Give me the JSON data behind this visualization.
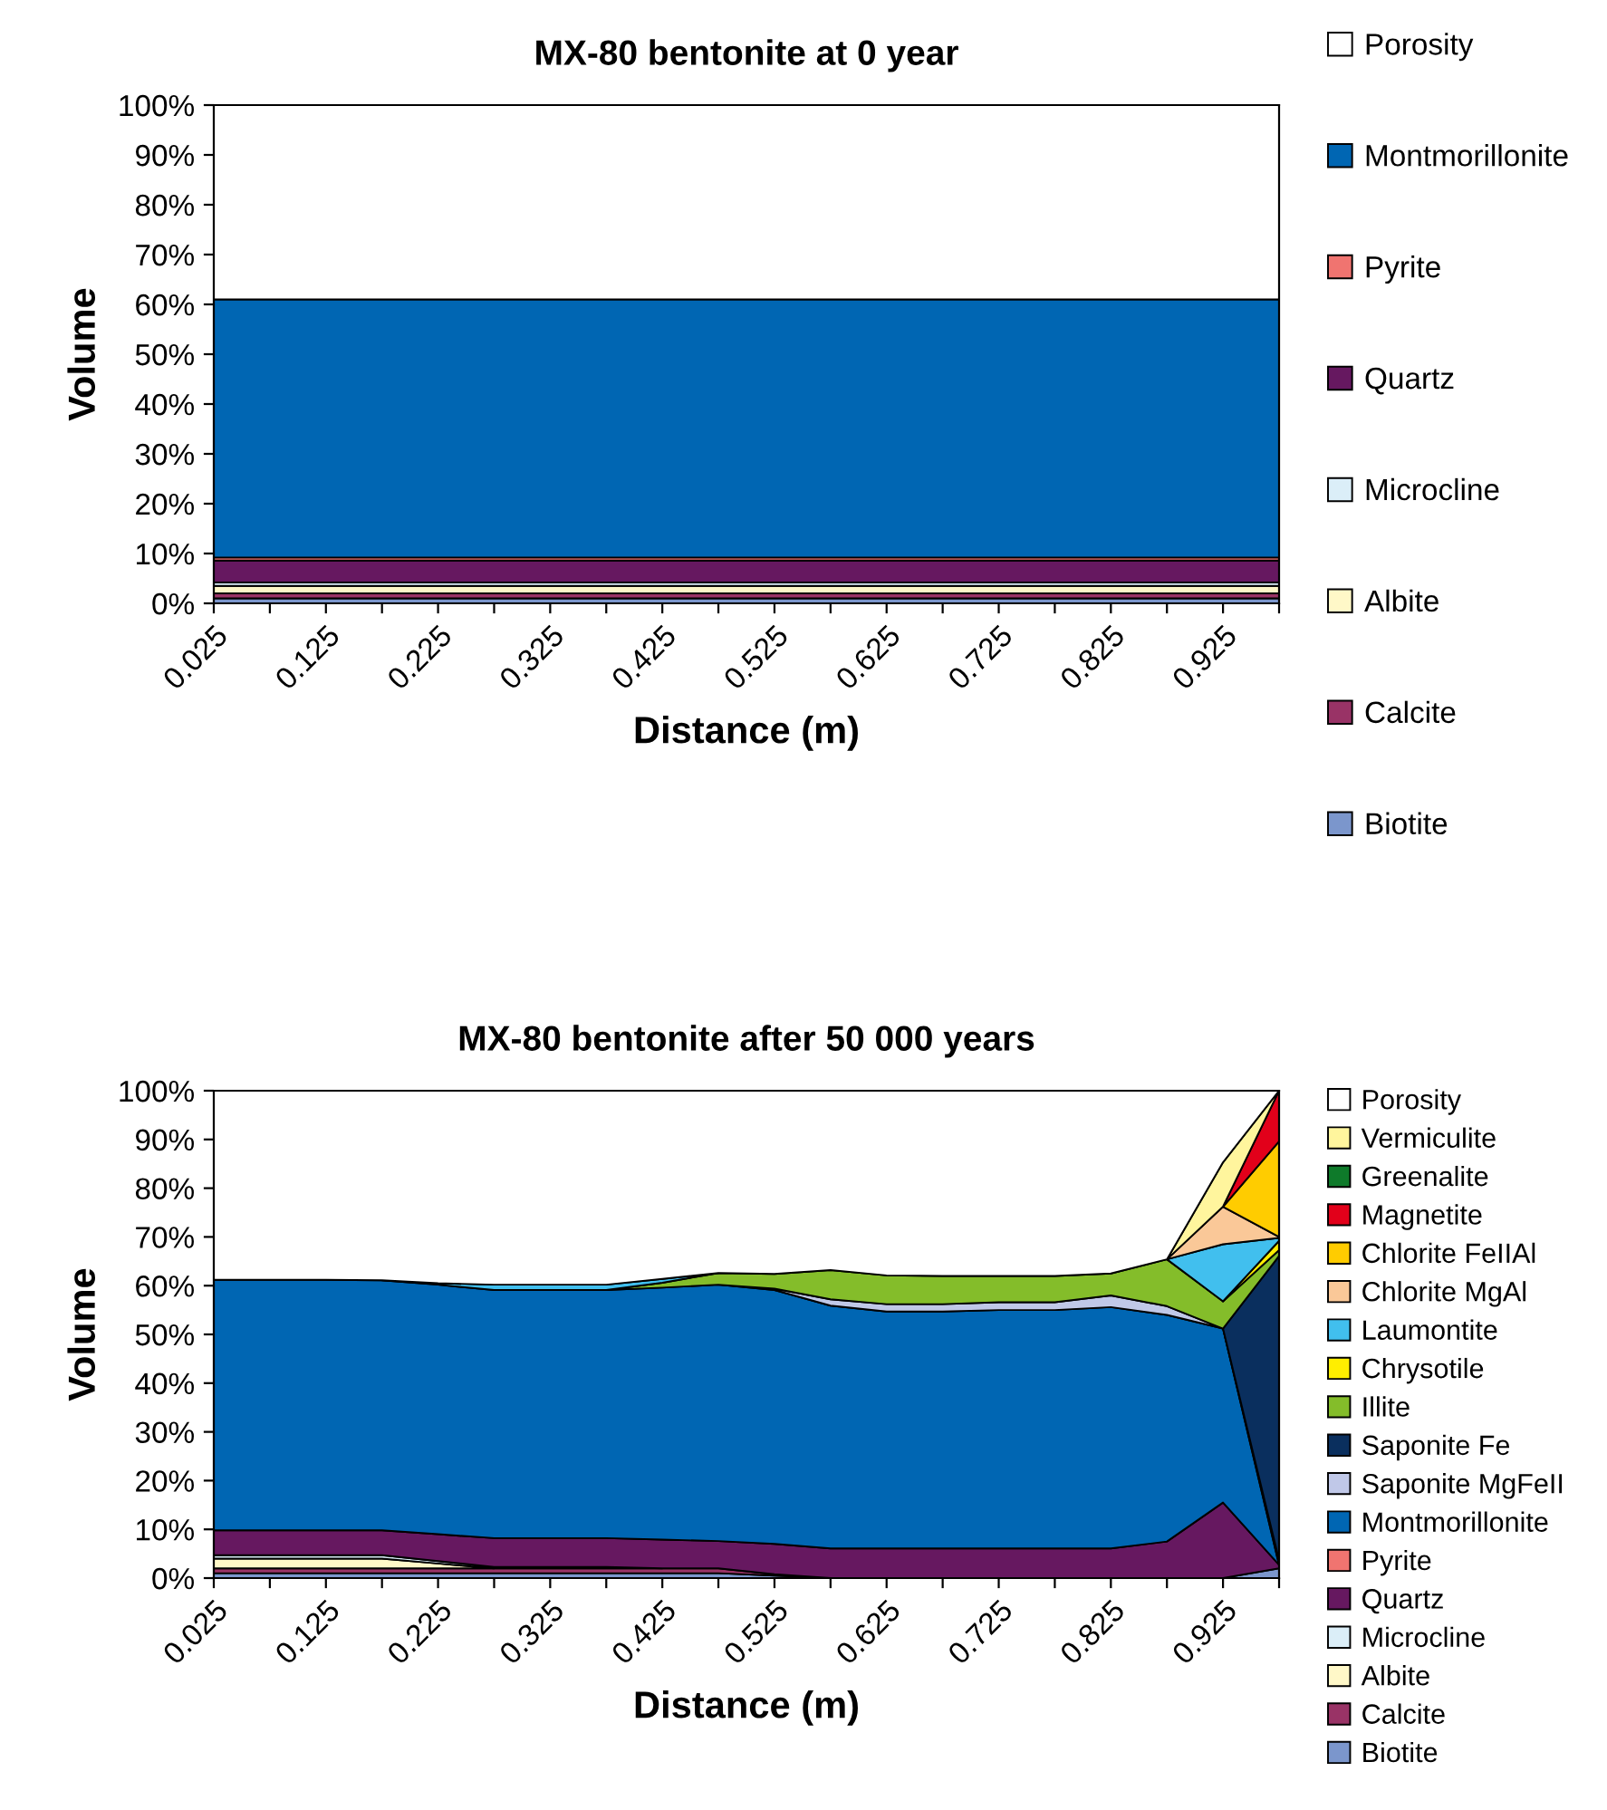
{
  "chart_data": [
    {
      "type": "area",
      "stacked": true,
      "title": "MX-80 bentonite at 0 year",
      "xlabel": "Distance (m)",
      "ylabel": "Volume",
      "categories": [
        "0.025",
        null,
        "0.125",
        null,
        "0.225",
        null,
        "0.325",
        null,
        "0.425",
        null,
        "0.525",
        null,
        "0.625",
        null,
        "0.725",
        null,
        "0.825",
        null,
        "0.925",
        null
      ],
      "ylim": [
        0,
        100
      ],
      "yticks": [
        {
          "value": 0,
          "label": "0%"
        },
        {
          "value": 10,
          "label": "10%"
        },
        {
          "value": 20,
          "label": "20%"
        },
        {
          "value": 30,
          "label": "30%"
        },
        {
          "value": 40,
          "label": "40%"
        },
        {
          "value": 50,
          "label": "50%"
        },
        {
          "value": 60,
          "label": "60%"
        },
        {
          "value": 70,
          "label": "70%"
        },
        {
          "value": 80,
          "label": "80%"
        },
        {
          "value": 90,
          "label": "90%"
        },
        {
          "value": 100,
          "label": "100%"
        }
      ],
      "grid": false,
      "legend": "right",
      "series": [
        {
          "name": "Biotite",
          "color": "#7b96cc",
          "values": [
            1.0,
            1.0,
            1.0,
            1.0,
            1.0,
            1.0,
            1.0,
            1.0,
            1.0,
            1.0,
            1.0,
            1.0,
            1.0,
            1.0,
            1.0,
            1.0,
            1.0,
            1.0,
            1.0,
            1.0
          ]
        },
        {
          "name": "Calcite",
          "color": "#993366",
          "values": [
            1.0,
            1.0,
            1.0,
            1.0,
            1.0,
            1.0,
            1.0,
            1.0,
            1.0,
            1.0,
            1.0,
            1.0,
            1.0,
            1.0,
            1.0,
            1.0,
            1.0,
            1.0,
            1.0,
            1.0
          ]
        },
        {
          "name": "Albite",
          "color": "#fff8c8",
          "values": [
            1.5,
            1.5,
            1.5,
            1.5,
            1.5,
            1.5,
            1.5,
            1.5,
            1.5,
            1.5,
            1.5,
            1.5,
            1.5,
            1.5,
            1.5,
            1.5,
            1.5,
            1.5,
            1.5,
            1.5
          ]
        },
        {
          "name": "Microcline",
          "color": "#dbeef8",
          "values": [
            0.7,
            0.7,
            0.7,
            0.7,
            0.7,
            0.7,
            0.7,
            0.7,
            0.7,
            0.7,
            0.7,
            0.7,
            0.7,
            0.7,
            0.7,
            0.7,
            0.7,
            0.7,
            0.7,
            0.7
          ]
        },
        {
          "name": "Quartz",
          "color": "#661860",
          "values": [
            4.4,
            4.4,
            4.4,
            4.4,
            4.4,
            4.4,
            4.4,
            4.4,
            4.4,
            4.4,
            4.4,
            4.4,
            4.4,
            4.4,
            4.4,
            4.4,
            4.4,
            4.4,
            4.4,
            4.4
          ]
        },
        {
          "name": "Pyrite",
          "color": "#f07470",
          "values": [
            0.6,
            0.6,
            0.6,
            0.6,
            0.6,
            0.6,
            0.6,
            0.6,
            0.6,
            0.6,
            0.6,
            0.6,
            0.6,
            0.6,
            0.6,
            0.6,
            0.6,
            0.6,
            0.6,
            0.6
          ]
        },
        {
          "name": "Montmorillonite",
          "color": "#0066b3",
          "values": [
            51.8,
            51.8,
            51.8,
            51.8,
            51.8,
            51.8,
            51.8,
            51.8,
            51.8,
            51.8,
            51.8,
            51.8,
            51.8,
            51.8,
            51.8,
            51.8,
            51.8,
            51.8,
            51.8,
            51.8
          ]
        },
        {
          "name": "Porosity",
          "color": "#ffffff",
          "values": [
            39,
            39,
            39,
            39,
            39,
            39,
            39,
            39,
            39,
            39,
            39,
            39,
            39,
            39,
            39,
            39,
            39,
            39,
            39,
            39
          ]
        }
      ]
    },
    {
      "type": "area",
      "stacked": true,
      "title": "MX-80 bentonite after 50 000 years",
      "xlabel": "Distance (m)",
      "ylabel": "Volume",
      "categories": [
        "0.025",
        null,
        "0.125",
        null,
        "0.225",
        null,
        "0.325",
        null,
        "0.425",
        null,
        "0.525",
        null,
        "0.625",
        null,
        "0.725",
        null,
        "0.825",
        null,
        "0.925",
        null
      ],
      "ylim": [
        0,
        100
      ],
      "yticks": [
        {
          "value": 0,
          "label": "0%"
        },
        {
          "value": 10,
          "label": "10%"
        },
        {
          "value": 20,
          "label": "20%"
        },
        {
          "value": 30,
          "label": "30%"
        },
        {
          "value": 40,
          "label": "40%"
        },
        {
          "value": 50,
          "label": "50%"
        },
        {
          "value": 60,
          "label": "60%"
        },
        {
          "value": 70,
          "label": "70%"
        },
        {
          "value": 80,
          "label": "80%"
        },
        {
          "value": 90,
          "label": "90%"
        },
        {
          "value": 100,
          "label": "100%"
        }
      ],
      "grid": false,
      "legend": "right",
      "series": [
        {
          "name": "Biotite",
          "color": "#7b96cc",
          "values": [
            1,
            1,
            1,
            1,
            1,
            1,
            1,
            1,
            1,
            1,
            0.5,
            0,
            null,
            null,
            null,
            null,
            null,
            null,
            0,
            2
          ]
        },
        {
          "name": "Calcite",
          "color": "#993366",
          "values": [
            1,
            1,
            1,
            1,
            1,
            1,
            1,
            1,
            1,
            1,
            0.3,
            0,
            null,
            null,
            null,
            null,
            null,
            null,
            null,
            null
          ]
        },
        {
          "name": "Albite",
          "color": "#fff8c8",
          "values": [
            2,
            2,
            2,
            2,
            1,
            0,
            null,
            null,
            null,
            null,
            null,
            null,
            null,
            null,
            null,
            null,
            null,
            null,
            null,
            null
          ]
        },
        {
          "name": "Microcline",
          "color": "#dbeef8",
          "values": [
            0.7,
            0.7,
            0.7,
            0.7,
            0.5,
            0.3,
            0.3,
            0.3,
            0,
            null,
            null,
            null,
            null,
            null,
            null,
            null,
            null,
            null,
            null,
            null
          ]
        },
        {
          "name": "Quartz",
          "color": "#661860",
          "values": [
            5.1,
            5.1,
            5.1,
            5.1,
            5.5,
            5.9,
            5.9,
            5.9,
            5.9,
            5.6,
            6.2,
            6.1,
            6.1,
            6.1,
            6.1,
            6.1,
            6.1,
            7.5,
            15.5,
            0.7
          ]
        },
        {
          "name": "Pyrite",
          "color": "#f07470",
          "values": [
            null,
            null,
            null,
            null,
            null,
            null,
            null,
            null,
            null,
            null,
            null,
            null,
            null,
            null,
            null,
            null,
            null,
            null,
            null,
            null
          ]
        },
        {
          "name": "Montmorillonite",
          "color": "#0066b3",
          "values": [
            51.4,
            51.4,
            51.4,
            51.3,
            51.2,
            50.9,
            50.9,
            50.9,
            51.7,
            52.6,
            52.1,
            49.8,
            48.6,
            48.6,
            48.9,
            48.9,
            49.5,
            46.5,
            35.7,
            0
          ]
        },
        {
          "name": "Saponite MgFeII",
          "color": "#c0c8e8",
          "values": [
            null,
            null,
            null,
            null,
            null,
            null,
            null,
            null,
            null,
            0,
            0.3,
            1.3,
            1.5,
            1.5,
            1.6,
            1.6,
            2.4,
            1.8,
            0,
            1.0
          ]
        },
        {
          "name": "Saponite Fe",
          "color": "#0a2f5e",
          "values": [
            null,
            null,
            null,
            null,
            null,
            null,
            null,
            null,
            null,
            null,
            null,
            null,
            null,
            null,
            null,
            null,
            null,
            null,
            0,
            62.4
          ]
        },
        {
          "name": "Illite",
          "color": "#84bd2a",
          "values": [
            null,
            null,
            null,
            null,
            null,
            null,
            null,
            0,
            1.0,
            2.4,
            3.0,
            6.0,
            5.9,
            5.8,
            5.4,
            5.4,
            4.5,
            9.6,
            5.6,
            1.2
          ]
        },
        {
          "name": "Chrysotile",
          "color": "#ffee00",
          "values": [
            null,
            null,
            null,
            null,
            null,
            null,
            null,
            null,
            null,
            null,
            null,
            null,
            null,
            null,
            null,
            null,
            null,
            null,
            0,
            1.9
          ]
        },
        {
          "name": "Laumontite",
          "color": "#41bfee",
          "values": [
            null,
            null,
            null,
            0,
            0.3,
            1.1,
            1.1,
            1.1,
            0.8,
            0,
            null,
            null,
            null,
            null,
            null,
            null,
            null,
            0,
            11.7,
            0.6
          ]
        },
        {
          "name": "Chlorite MgAl",
          "color": "#fac898",
          "values": [
            null,
            null,
            null,
            null,
            null,
            null,
            null,
            null,
            null,
            null,
            null,
            null,
            null,
            null,
            null,
            null,
            null,
            0,
            7.7,
            0.2
          ]
        },
        {
          "name": "Chlorite FeIIAl",
          "color": "#ffcc00",
          "values": [
            null,
            null,
            null,
            null,
            null,
            null,
            null,
            null,
            null,
            null,
            null,
            null,
            null,
            null,
            null,
            null,
            null,
            null,
            0,
            19.6
          ]
        },
        {
          "name": "Magnetite",
          "color": "#e2001a",
          "values": [
            null,
            null,
            null,
            null,
            null,
            null,
            null,
            null,
            null,
            null,
            null,
            null,
            null,
            null,
            null,
            null,
            null,
            null,
            0,
            10.4
          ]
        },
        {
          "name": "Greenalite",
          "color": "#0e7a2a",
          "values": [
            null,
            null,
            null,
            null,
            null,
            null,
            null,
            null,
            null,
            null,
            null,
            null,
            null,
            null,
            null,
            null,
            null,
            null,
            null,
            null
          ]
        },
        {
          "name": "Vermiculite",
          "color": "#fff59d",
          "values": [
            null,
            null,
            null,
            null,
            null,
            null,
            null,
            null,
            null,
            null,
            null,
            null,
            null,
            null,
            null,
            null,
            null,
            0,
            9.1,
            0
          ]
        },
        {
          "name": "Porosity",
          "color": "#ffffff",
          "values": [
            38.8,
            38.8,
            38.8,
            38.9,
            39.5,
            39.8,
            39.8,
            39.8,
            38.6,
            37.4,
            37.6,
            36.8,
            37.9,
            38.0,
            38.0,
            38.0,
            37.5,
            34.6,
            14.7,
            0
          ]
        }
      ]
    }
  ]
}
